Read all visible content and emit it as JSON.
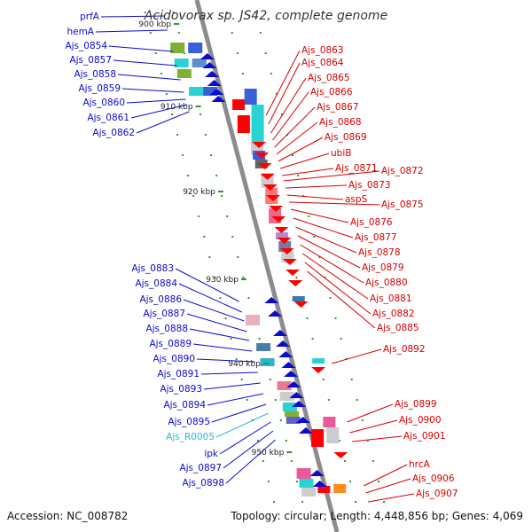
{
  "title": "Acidovorax sp. JS42, complete genome",
  "accession": "Accession: NC_008782",
  "summary": "Topology: circular; Length: 4,448,856 bp; Genes: 4,069",
  "colors": {
    "backbone": "#8c8c8c",
    "tick": "#2d9a2d",
    "dot": "#2d9a2d",
    "left_label": "#0a0ad2",
    "right_label": "#d80000",
    "rna_label": "#29b9d8"
  },
  "kbp_ticks": [
    {
      "label": "900 kbp"
    },
    {
      "label": "910 kbp"
    },
    {
      "label": "920 kbp"
    },
    {
      "label": "930 kbp"
    },
    {
      "label": "940 kbp"
    },
    {
      "label": "950 kbp"
    }
  ],
  "left_labels": [
    {
      "text": "prfA",
      "type": "gene"
    },
    {
      "text": "hemA",
      "type": "gene"
    },
    {
      "text": "Ajs_0854",
      "type": "gene"
    },
    {
      "text": "Ajs_0857",
      "type": "gene"
    },
    {
      "text": "Ajs_0858",
      "type": "gene"
    },
    {
      "text": "Ajs_0859",
      "type": "gene"
    },
    {
      "text": "Ajs_0860",
      "type": "gene"
    },
    {
      "text": "Ajs_0861",
      "type": "gene"
    },
    {
      "text": "Ajs_0862",
      "type": "gene"
    },
    {
      "text": "Ajs_0883",
      "type": "gene"
    },
    {
      "text": "Ajs_0884",
      "type": "gene"
    },
    {
      "text": "Ajs_0886",
      "type": "gene"
    },
    {
      "text": "Ajs_0887",
      "type": "gene"
    },
    {
      "text": "Ajs_0888",
      "type": "gene"
    },
    {
      "text": "Ajs_0889",
      "type": "gene"
    },
    {
      "text": "Ajs_0890",
      "type": "gene"
    },
    {
      "text": "Ajs_0891",
      "type": "gene"
    },
    {
      "text": "Ajs_0893",
      "type": "gene"
    },
    {
      "text": "Ajs_0894",
      "type": "gene"
    },
    {
      "text": "Ajs_0895",
      "type": "gene"
    },
    {
      "text": "Ajs_R0005",
      "type": "rna"
    },
    {
      "text": "ipk",
      "type": "gene"
    },
    {
      "text": "Ajs_0897",
      "type": "gene"
    },
    {
      "text": "Ajs_0898",
      "type": "gene"
    }
  ],
  "right_labels": [
    {
      "text": "Ajs_0863"
    },
    {
      "text": "Ajs_0864"
    },
    {
      "text": "Ajs_0865"
    },
    {
      "text": "Ajs_0866"
    },
    {
      "text": "Ajs_0867"
    },
    {
      "text": "Ajs_0868"
    },
    {
      "text": "Ajs_0869"
    },
    {
      "text": "ubiB"
    },
    {
      "text": "Ajs_0871"
    },
    {
      "text": "Ajs_0872"
    },
    {
      "text": "Ajs_0873"
    },
    {
      "text": "aspS"
    },
    {
      "text": "Ajs_0875"
    },
    {
      "text": "Ajs_0876"
    },
    {
      "text": "Ajs_0877"
    },
    {
      "text": "Ajs_0878"
    },
    {
      "text": "Ajs_0879"
    },
    {
      "text": "Ajs_0880"
    },
    {
      "text": "Ajs_0881"
    },
    {
      "text": "Ajs_0882"
    },
    {
      "text": "Ajs_0885"
    },
    {
      "text": "Ajs_0892"
    },
    {
      "text": "Ajs_0899"
    },
    {
      "text": "Ajs_0900"
    },
    {
      "text": "Ajs_0901"
    },
    {
      "text": "hrcA"
    },
    {
      "text": "Ajs_0906"
    },
    {
      "text": "Ajs_0907"
    }
  ]
}
